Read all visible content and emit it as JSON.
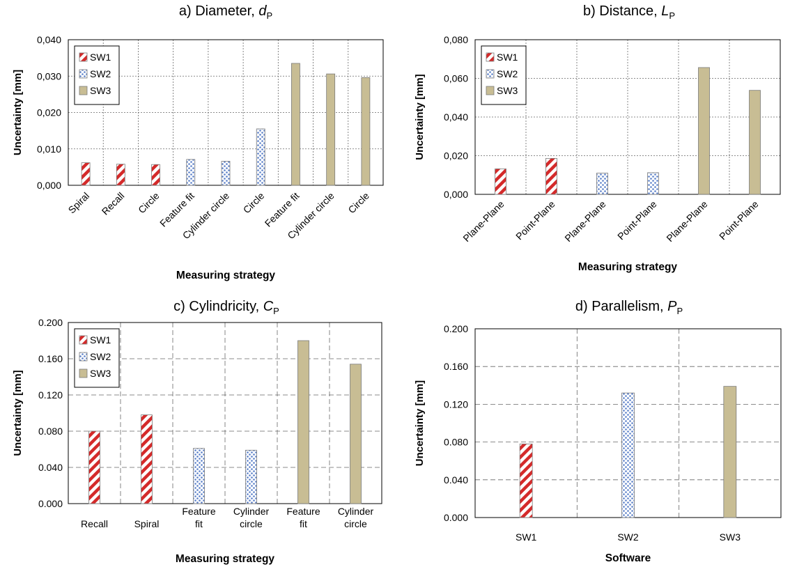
{
  "figure": {
    "colors": {
      "sw1_stripe": "#d42a2a",
      "sw2_dot": "#5a7fc8",
      "sw3_fill": "#c8bd94",
      "bar_outline": "#7a7a7a",
      "frame": "#000000",
      "grid": "#666666"
    },
    "legend_entries": [
      "SW1",
      "SW2",
      "SW3"
    ]
  },
  "chart_data": [
    {
      "id": "a",
      "type": "bar",
      "title_main": "a) Diameter, ",
      "title_var": "d",
      "title_sub": "P",
      "xlabel": "Measuring strategy",
      "ylabel": "Uncertainty [mm]",
      "ylim": [
        0,
        0.04
      ],
      "yticks": [
        "0,000",
        "0,010",
        "0,020",
        "0,030",
        "0,040"
      ],
      "grid": "dotted",
      "legend": "top-left",
      "label_rotation": -45,
      "categories": [
        [
          "Spiral"
        ],
        [
          "Recall"
        ],
        [
          "Circle"
        ],
        [
          "Feature fit"
        ],
        [
          "Cylinder circle"
        ],
        [
          "Circle"
        ],
        [
          "Feature fit"
        ],
        [
          "Cylinder circle"
        ],
        [
          "Circle"
        ]
      ],
      "series_of_bar": [
        0,
        0,
        0,
        1,
        1,
        1,
        2,
        2,
        2
      ],
      "values": [
        0.0062,
        0.0058,
        0.0057,
        0.0071,
        0.0066,
        0.0155,
        0.0335,
        0.0306,
        0.0296
      ]
    },
    {
      "id": "b",
      "type": "bar",
      "title_main": "b) Distance, ",
      "title_var": "L",
      "title_sub": "P",
      "xlabel": "Measuring strategy",
      "ylabel": "Uncertainty [mm]",
      "ylim": [
        0,
        0.08
      ],
      "yticks": [
        "0,000",
        "0,020",
        "0,040",
        "0,060",
        "0,080"
      ],
      "grid": "dotted",
      "legend": "top-left",
      "label_rotation": -45,
      "categories": [
        [
          "Plane-Plane"
        ],
        [
          "Point-Plane"
        ],
        [
          "Plane-Plane"
        ],
        [
          "Point-Plane"
        ],
        [
          "Plane-Plane"
        ],
        [
          "Point-Plane"
        ]
      ],
      "series_of_bar": [
        0,
        0,
        1,
        1,
        2,
        2
      ],
      "values": [
        0.0132,
        0.0186,
        0.011,
        0.0112,
        0.0656,
        0.0538
      ]
    },
    {
      "id": "c",
      "type": "bar",
      "title_main": "c) Cylindricity, ",
      "title_var": "C",
      "title_sub": "P",
      "xlabel": "Measuring strategy",
      "ylabel": "Uncertainty [mm]",
      "ylim": [
        0,
        0.2
      ],
      "yticks": [
        "0.000",
        "0.040",
        "0.080",
        "0.120",
        "0.160",
        "0.200"
      ],
      "grid": "dashed",
      "legend": "top-left",
      "label_rotation": 0,
      "categories": [
        [
          "Recall"
        ],
        [
          "Spiral"
        ],
        [
          "Feature",
          "fit"
        ],
        [
          "Cylinder",
          "circle"
        ],
        [
          "Feature",
          "fit"
        ],
        [
          "Cylinder",
          "circle"
        ]
      ],
      "series_of_bar": [
        0,
        0,
        1,
        1,
        2,
        2
      ],
      "values": [
        0.08,
        0.098,
        0.061,
        0.059,
        0.18,
        0.154
      ]
    },
    {
      "id": "d",
      "type": "bar",
      "title_main": "d) Parallelism, ",
      "title_var": "P",
      "title_sub": "P",
      "xlabel": "Software",
      "ylabel": "Uncertainty [mm]",
      "ylim": [
        0,
        0.2
      ],
      "yticks": [
        "0.000",
        "0.040",
        "0.080",
        "0.120",
        "0.160",
        "0.200"
      ],
      "grid": "dashed",
      "legend": "none",
      "label_rotation": 0,
      "categories": [
        [
          "SW1"
        ],
        [
          "SW2"
        ],
        [
          "SW3"
        ]
      ],
      "series_of_bar": [
        0,
        1,
        2
      ],
      "values": [
        0.078,
        0.132,
        0.139
      ]
    }
  ]
}
